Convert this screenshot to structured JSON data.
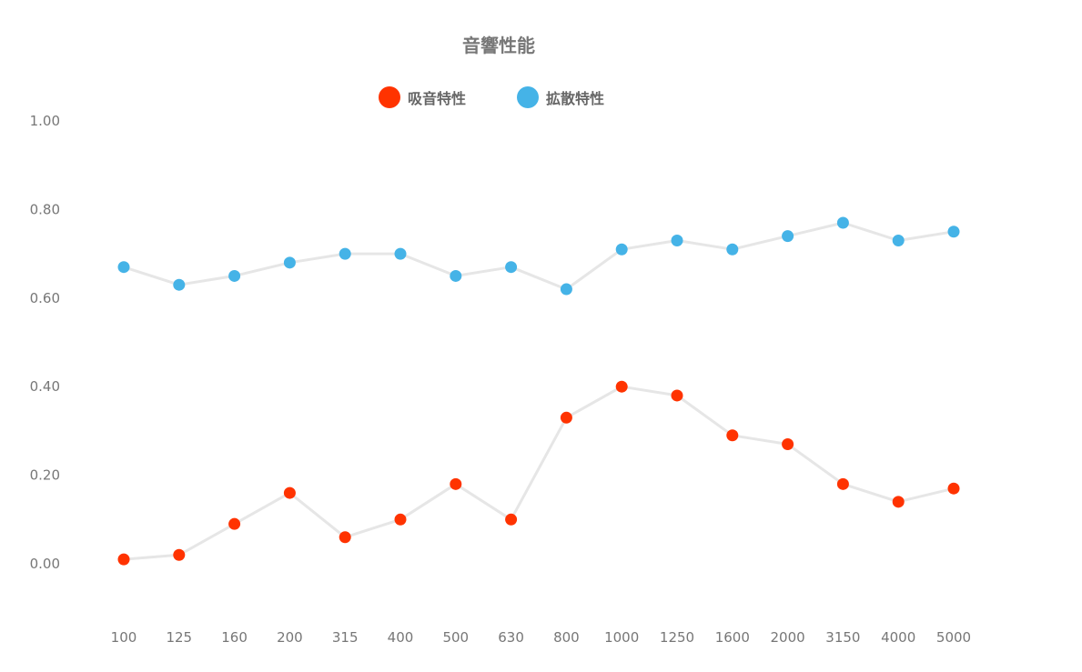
{
  "chart_data": {
    "type": "line",
    "title": "音響性能",
    "categories": [
      "100",
      "125",
      "160",
      "200",
      "315",
      "400",
      "500",
      "630",
      "800",
      "1000",
      "1250",
      "1600",
      "2000",
      "3150",
      "4000",
      "5000"
    ],
    "series": [
      {
        "name": "吸音特性",
        "color": "#ff3300",
        "values": [
          0.01,
          0.02,
          0.09,
          0.16,
          0.06,
          0.1,
          0.18,
          0.1,
          0.33,
          0.4,
          0.38,
          0.29,
          0.27,
          0.18,
          0.14,
          0.17
        ]
      },
      {
        "name": "拡散特性",
        "color": "#45b3e7",
        "values": [
          0.67,
          0.63,
          0.65,
          0.68,
          0.7,
          0.7,
          0.65,
          0.67,
          0.62,
          0.71,
          0.73,
          0.71,
          0.74,
          0.77,
          0.73,
          0.75
        ]
      }
    ],
    "yticks": [
      "0.00",
      "0.20",
      "0.40",
      "0.60",
      "0.80",
      "1.00"
    ],
    "ylim": [
      -0.1,
      1.0
    ],
    "line_color": "#e6e6e6",
    "legend_position": "top-center",
    "grid": false
  }
}
